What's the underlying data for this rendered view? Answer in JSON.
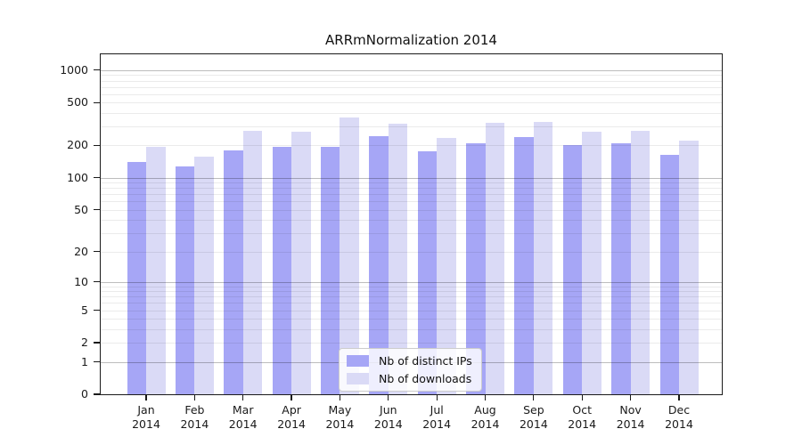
{
  "chart_data": {
    "type": "bar",
    "title": "ARRmNormalization 2014",
    "categories": [
      "Jan",
      "Feb",
      "Mar",
      "Apr",
      "May",
      "Jun",
      "Jul",
      "Aug",
      "Sep",
      "Oct",
      "Nov",
      "Dec"
    ],
    "x_tick_year": "2014",
    "series": [
      {
        "name": "Nb of distinct IPs",
        "color": "#a6a6f6",
        "values": [
          140,
          128,
          180,
          193,
          196,
          244,
          177,
          210,
          240,
          203,
          209,
          165
        ]
      },
      {
        "name": "Nb of downloads",
        "color": "#dadaf6",
        "values": [
          196,
          158,
          272,
          270,
          362,
          318,
          234,
          322,
          328,
          268,
          276,
          220
        ]
      }
    ],
    "y_ticks": [
      0,
      1,
      2,
      5,
      10,
      20,
      50,
      100,
      200,
      500,
      1000
    ],
    "y_scale": "log1p",
    "ylim": [
      0,
      1400
    ],
    "grid": true,
    "legend_position": "lower center"
  },
  "colors": {
    "background": "#ffffff",
    "axis": "#1a1a1a",
    "grid_major": "#c8c8c8",
    "grid_minor": "#ebebeb",
    "text": "#111111"
  }
}
